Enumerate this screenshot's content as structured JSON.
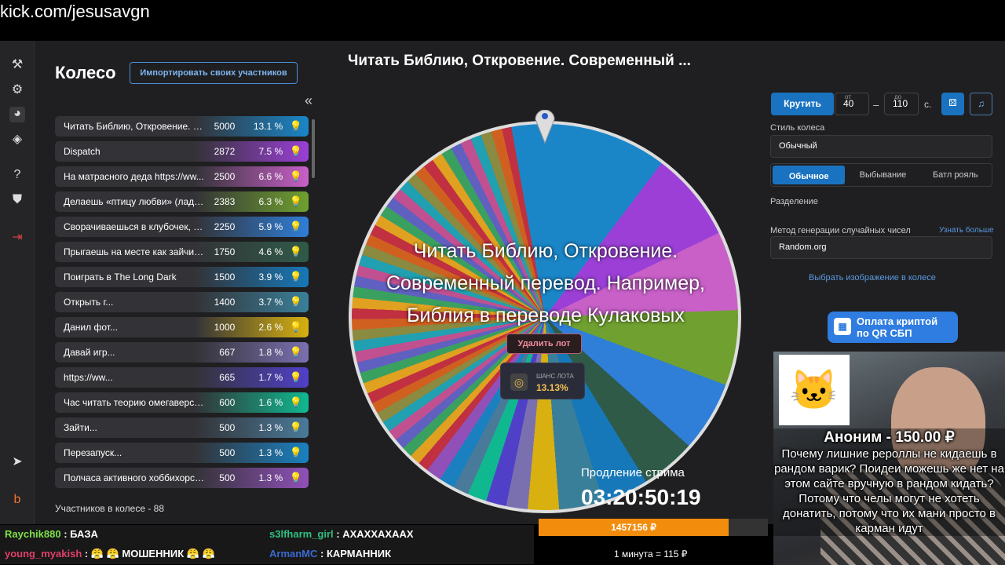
{
  "url": "kick.com/jesusavgn",
  "nav": [
    "gavel-icon",
    "gear-icon",
    "pie-chart-icon",
    "layers-icon",
    "help-icon",
    "shield-icon",
    "logout-icon",
    "telegram-icon",
    "boosty-icon"
  ],
  "title": "Колесо",
  "import_label": "Импортировать своих участников",
  "collapse": "«",
  "lots": [
    {
      "name": "Читать Библию, Откровение. Со...",
      "amount": "5000",
      "pct": "13.1 %",
      "color": "#1a86c8",
      "share": 13.1
    },
    {
      "name": "Dispatch",
      "amount": "2872",
      "pct": "7.5 %",
      "color": "#9b3fd6",
      "share": 7.5
    },
    {
      "name": "На матрасного деда https://ww...",
      "amount": "2500",
      "pct": "6.6 %",
      "color": "#c860c8",
      "share": 6.6
    },
    {
      "name": "Делаешь «птицу любви» (ладош...",
      "amount": "2383",
      "pct": "6.3 %",
      "color": "#6fa030",
      "share": 6.3
    },
    {
      "name": "Сворачиваешься в клубочек, по...",
      "amount": "2250",
      "pct": "5.9 %",
      "color": "#2f7ed8",
      "share": 5.9
    },
    {
      "name": "Прыгаешь на месте как зайчик (...",
      "amount": "1750",
      "pct": "4.6 %",
      "color": "#2f5a48",
      "share": 4.6
    },
    {
      "name": "Поиграть в The Long Dark",
      "amount": "1500",
      "pct": "3.9 %",
      "color": "#1678b8",
      "share": 3.9
    },
    {
      "name": "Открыть г...",
      "amount": "1400",
      "pct": "3.7 %",
      "color": "#3a7f9a",
      "share": 3.7
    },
    {
      "name": "Данил фот...",
      "amount": "1000",
      "pct": "2.6 %",
      "color": "#d8b010",
      "share": 2.6
    },
    {
      "name": "Давай игр...",
      "amount": "667",
      "pct": "1.8 %",
      "color": "#7a70b0",
      "share": 1.8
    },
    {
      "name": "https://ww...",
      "amount": "665",
      "pct": "1.7 %",
      "color": "#5040c8",
      "share": 1.7
    },
    {
      "name": "Час читать теорию омегаверса в...",
      "amount": "600",
      "pct": "1.6 %",
      "color": "#10b890",
      "share": 1.6
    },
    {
      "name": "Зайти...",
      "amount": "500",
      "pct": "1.3 %",
      "color": "#4a7a9a",
      "share": 1.3
    },
    {
      "name": "Перезапуск...",
      "amount": "500",
      "pct": "1.3 %",
      "color": "#1a80c0",
      "share": 1.3
    },
    {
      "name": "Полчаса активного хоббихорсинг...",
      "amount": "500",
      "pct": "1.3 %",
      "color": "#9050b8",
      "share": 1.3
    }
  ],
  "count": "Участников в колесе - 88",
  "wheel": {
    "title": "Читать Библию, Откровение. Современный ...",
    "winner": "Читать Библию, Откровение. Современный перевод. Например, Библия в переводе Кулаковых",
    "delete": "Удалить лот",
    "chance_label": "ШАНС ЛОТА",
    "chance": "13.13%"
  },
  "controls": {
    "spin": "Крутить",
    "from_label": "от",
    "from": "40",
    "dash": "–",
    "to_label": "до",
    "to": "110",
    "unit": "с.",
    "style_label": "Стиль колеса",
    "style": "Обычный",
    "modes": [
      "Обычное",
      "Выбывание",
      "Батл рояль"
    ],
    "split_label": "Разделение",
    "rng_label": "Метод генерации случайных чисел",
    "rng": "Random.org",
    "learn": "Узнать больше",
    "image_link": "Выбрать изображение в колесе"
  },
  "chat": [
    {
      "user": "Raychik880",
      "msg": ": БАЗА",
      "color": "#7fe04a"
    },
    {
      "user": "s3lfharm_girl",
      "msg": ": АХАХХАХААХ",
      "color": "#30c080"
    },
    {
      "user": "young_myakish",
      "msg": ": 😤 😤 МОШЕННИК 😤 😤",
      "color": "#e0406a"
    },
    {
      "user": "ArmanMC",
      "msg": ": КАРМАННИК",
      "color": "#3a6ad0"
    }
  ],
  "pay": {
    "line1": "Оплата криптой",
    "line2": "по QR СБП"
  },
  "donation": {
    "header": "Аноним - 150.00 ₽",
    "text": "Почему лишние рероллы не кидаешь в рандом варик? Поидеи можешь же нет на этом сайте вручную в рандом кидать? Потому что челы могут не хотеть донатить, потому что их мани просто в карман идут"
  },
  "extension": {
    "label": "Продление стрима",
    "timer": "03:20:50:19",
    "amount": "1457156 ₽",
    "progress_pct": 83,
    "rate": "1 минута = 115 ₽"
  }
}
